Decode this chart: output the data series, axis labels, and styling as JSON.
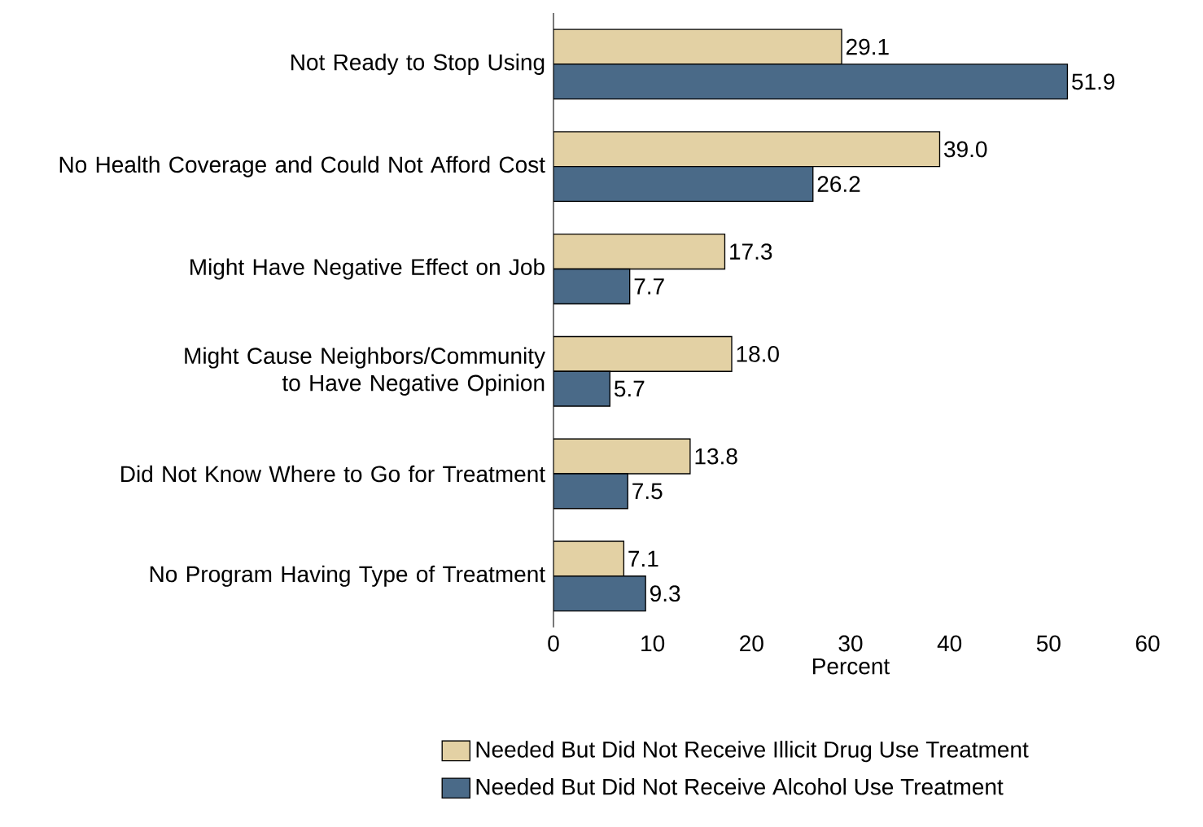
{
  "chart_data": {
    "type": "bar",
    "orientation": "horizontal",
    "xlabel": "Percent",
    "xlim": [
      0,
      60
    ],
    "xticks": [
      0,
      10,
      20,
      30,
      40,
      50,
      60
    ],
    "grid": false,
    "legend": "bottom",
    "categories": [
      "Not Ready to Stop Using",
      "No Health Coverage and Could Not Afford Cost",
      "Might Have Negative Effect on Job",
      "Might Cause Neighbors/Community to Have Negative Opinion",
      "Did Not Know Where to Go for Treatment",
      "No Program Having Type of Treatment"
    ],
    "series": [
      {
        "name": "Needed But Did Not Receive Illicit Drug Use Treatment",
        "color": "#e3d1a4",
        "values": [
          29.1,
          39.0,
          17.3,
          18.0,
          13.8,
          7.1
        ],
        "value_labels": [
          "29.1",
          "39.0",
          "17.3",
          "18.0",
          "13.8",
          "7.1"
        ]
      },
      {
        "name": "Needed But Did Not Receive Alcohol Use Treatment",
        "color": "#4a6a88",
        "values": [
          51.9,
          26.2,
          7.7,
          5.7,
          7.5,
          9.3
        ],
        "value_labels": [
          "51.9",
          "26.2",
          "7.7",
          "5.7",
          "7.5",
          "9.3"
        ]
      }
    ]
  }
}
